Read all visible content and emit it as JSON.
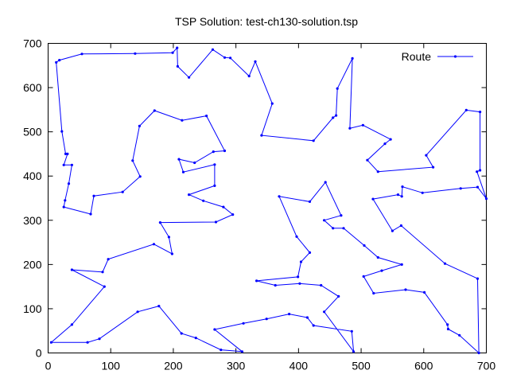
{
  "chart_data": {
    "type": "line",
    "title": "TSP Solution: test-ch130-solution.tsp",
    "xlabel": "",
    "ylabel": "",
    "xlim": [
      0,
      700
    ],
    "ylim": [
      0,
      700
    ],
    "xticks": [
      "0",
      "100",
      "200",
      "300",
      "400",
      "500",
      "600",
      "700"
    ],
    "yticks": [
      "0",
      "100",
      "200",
      "300",
      "400",
      "500",
      "600",
      "700"
    ],
    "grid": false,
    "legend_position": "top-right",
    "series": [
      {
        "name": "Route",
        "color": "#0000ff",
        "points": [
          [
            5,
            24
          ],
          [
            63,
            24
          ],
          [
            82,
            32
          ],
          [
            143,
            93
          ],
          [
            177,
            106
          ],
          [
            213,
            44
          ],
          [
            236,
            34
          ],
          [
            276,
            7
          ],
          [
            310,
            3
          ],
          [
            266,
            53
          ],
          [
            312,
            67
          ],
          [
            349,
            77
          ],
          [
            385,
            88
          ],
          [
            414,
            80
          ],
          [
            424,
            62
          ],
          [
            485,
            49
          ],
          [
            488,
            3
          ],
          [
            441,
            93
          ],
          [
            464,
            128
          ],
          [
            436,
            153
          ],
          [
            402,
            157
          ],
          [
            363,
            153
          ],
          [
            333,
            163
          ],
          [
            399,
            172
          ],
          [
            404,
            206
          ],
          [
            418,
            227
          ],
          [
            397,
            263
          ],
          [
            369,
            354
          ],
          [
            418,
            342
          ],
          [
            443,
            386
          ],
          [
            468,
            311
          ],
          [
            441,
            300
          ],
          [
            455,
            282
          ],
          [
            472,
            282
          ],
          [
            505,
            243
          ],
          [
            527,
            216
          ],
          [
            565,
            200
          ],
          [
            533,
            186
          ],
          [
            504,
            173
          ],
          [
            520,
            135
          ],
          [
            571,
            143
          ],
          [
            601,
            137
          ],
          [
            638,
            64
          ],
          [
            639,
            54
          ],
          [
            657,
            40
          ],
          [
            688,
            0
          ],
          [
            686,
            168
          ],
          [
            634,
            202
          ],
          [
            564,
            288
          ],
          [
            550,
            276
          ],
          [
            519,
            348
          ],
          [
            559,
            358
          ],
          [
            565,
            354
          ],
          [
            566,
            376
          ],
          [
            598,
            362
          ],
          [
            659,
            372
          ],
          [
            686,
            375
          ],
          [
            700,
            349
          ],
          [
            685,
            410
          ],
          [
            690,
            413
          ],
          [
            690,
            545
          ],
          [
            668,
            549
          ],
          [
            604,
            447
          ],
          [
            615,
            420
          ],
          [
            527,
            410
          ],
          [
            510,
            436
          ],
          [
            538,
            473
          ],
          [
            547,
            483
          ],
          [
            503,
            515
          ],
          [
            482,
            508
          ],
          [
            486,
            666
          ],
          [
            462,
            598
          ],
          [
            460,
            537
          ],
          [
            455,
            532
          ],
          [
            424,
            480
          ],
          [
            341,
            492
          ],
          [
            358,
            564
          ],
          [
            331,
            659
          ],
          [
            321,
            626
          ],
          [
            291,
            667
          ],
          [
            282,
            668
          ],
          [
            263,
            686
          ],
          [
            225,
            623
          ],
          [
            207,
            648
          ],
          [
            206,
            690
          ],
          [
            199,
            679
          ],
          [
            139,
            677
          ],
          [
            54,
            676
          ],
          [
            18,
            662
          ],
          [
            13,
            657
          ],
          [
            22,
            501
          ],
          [
            28,
            450
          ],
          [
            31,
            450
          ],
          [
            25,
            425
          ],
          [
            38,
            425
          ],
          [
            33,
            383
          ],
          [
            27,
            345
          ],
          [
            25,
            330
          ],
          [
            68,
            314
          ],
          [
            73,
            355
          ],
          [
            119,
            364
          ],
          [
            147,
            399
          ],
          [
            135,
            435
          ],
          [
            146,
            513
          ],
          [
            170,
            548
          ],
          [
            214,
            526
          ],
          [
            253,
            536
          ],
          [
            282,
            457
          ],
          [
            264,
            455
          ],
          [
            234,
            430
          ],
          [
            209,
            438
          ],
          [
            216,
            409
          ],
          [
            266,
            426
          ],
          [
            266,
            378
          ],
          [
            225,
            358
          ],
          [
            248,
            344
          ],
          [
            280,
            330
          ],
          [
            295,
            313
          ],
          [
            268,
            296
          ],
          [
            179,
            295
          ],
          [
            193,
            262
          ],
          [
            198,
            224
          ],
          [
            169,
            246
          ],
          [
            96,
            212
          ],
          [
            87,
            183
          ],
          [
            38,
            188
          ],
          [
            90,
            150
          ],
          [
            38,
            64
          ]
        ]
      }
    ]
  }
}
